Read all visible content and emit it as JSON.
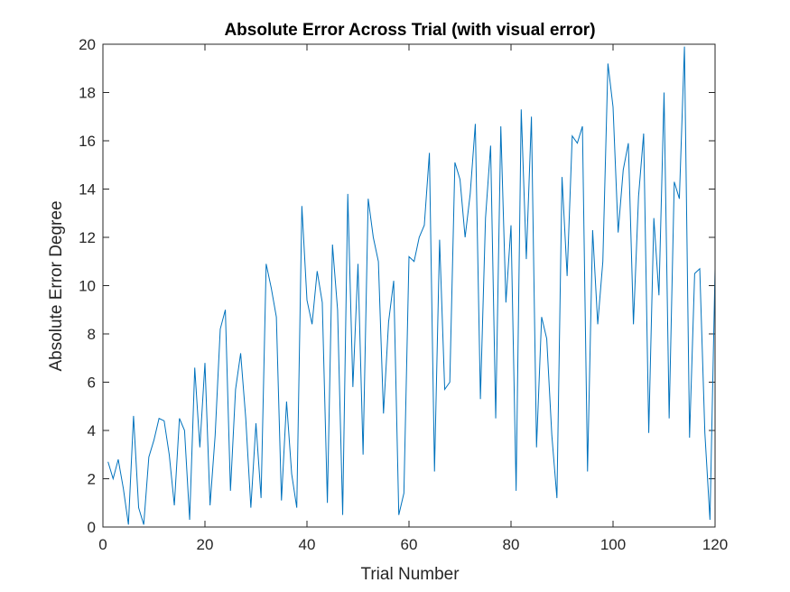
{
  "chart_data": {
    "type": "line",
    "title": "Absolute Error Across Trial (with visual error)",
    "xlabel": "Trial Number",
    "ylabel": "Absolute Error Degree",
    "xlim": [
      0,
      120
    ],
    "ylim": [
      0,
      20
    ],
    "xticks": [
      0,
      20,
      40,
      60,
      80,
      100,
      120
    ],
    "yticks": [
      0,
      2,
      4,
      6,
      8,
      10,
      12,
      14,
      16,
      18,
      20
    ],
    "grid": false,
    "line_color": "#0072BD",
    "axis_color": "#262626",
    "series": [
      {
        "x": [
          1,
          2,
          3,
          4,
          5,
          6,
          7,
          8,
          9,
          10,
          11,
          12,
          13,
          14,
          15,
          16,
          17,
          18,
          19,
          20,
          21,
          22,
          23,
          24,
          25,
          26,
          27,
          28,
          29,
          30,
          31,
          32,
          33,
          34,
          35,
          36,
          37,
          38,
          39,
          40,
          41,
          42,
          43,
          44,
          45,
          46,
          47,
          48,
          49,
          50,
          51,
          52,
          53,
          54,
          55,
          56,
          57,
          58,
          59,
          60,
          61,
          62,
          63,
          64,
          65,
          66,
          67,
          68,
          69,
          70,
          71,
          72,
          73,
          74,
          75,
          76,
          77,
          78,
          79,
          80,
          81,
          82,
          83,
          84,
          85,
          86,
          87,
          88,
          89,
          90,
          91,
          92,
          93,
          94,
          95,
          96,
          97,
          98,
          99,
          100,
          101,
          102,
          103,
          104,
          105,
          106,
          107,
          108,
          109,
          110,
          111,
          112,
          113,
          114,
          115,
          116,
          117,
          118,
          119,
          120
        ],
        "values": [
          2.7,
          2.0,
          2.8,
          1.6,
          0.1,
          4.6,
          0.8,
          0.1,
          2.9,
          3.6,
          4.5,
          4.4,
          3.0,
          0.9,
          4.5,
          4.0,
          0.3,
          6.6,
          3.3,
          6.8,
          0.9,
          3.8,
          8.2,
          9.0,
          1.5,
          5.7,
          7.2,
          4.5,
          0.8,
          4.3,
          1.2,
          10.9,
          9.9,
          8.7,
          1.1,
          5.2,
          2.2,
          0.8,
          13.3,
          9.4,
          8.4,
          10.6,
          9.3,
          1.0,
          11.7,
          9.0,
          0.5,
          13.8,
          5.8,
          10.9,
          3.0,
          13.6,
          12.0,
          11.0,
          4.7,
          8.5,
          10.2,
          0.5,
          1.4,
          11.2,
          11.0,
          12.0,
          12.5,
          15.5,
          2.3,
          11.9,
          5.7,
          6.0,
          15.1,
          14.4,
          12.0,
          13.8,
          16.7,
          5.3,
          12.8,
          15.8,
          4.5,
          16.6,
          9.3,
          12.5,
          1.5,
          17.3,
          11.1,
          17.0,
          3.3,
          8.7,
          7.8,
          3.8,
          1.2,
          14.5,
          10.4,
          16.2,
          15.9,
          16.6,
          2.3,
          12.3,
          8.4,
          11.0,
          19.2,
          17.4,
          12.2,
          14.8,
          15.9,
          8.4,
          13.7,
          16.3,
          3.9,
          12.8,
          9.6,
          18.0,
          4.5,
          14.3,
          13.6,
          19.9,
          3.7,
          10.5,
          10.7,
          3.9,
          0.3,
          10.7
        ]
      }
    ]
  }
}
